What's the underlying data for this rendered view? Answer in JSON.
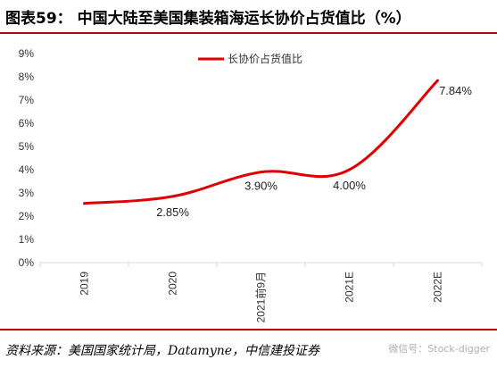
{
  "header": {
    "title": "图表59：  中国大陆至美国集装箱海运长协价占货值比（%）"
  },
  "footer": {
    "source": "资料来源：美国国家统计局，Datamyne，中信建投证券",
    "watermark": "微信号：Stock-digger"
  },
  "colors": {
    "series": "#e00000",
    "axis": "#d9d9d9",
    "accent": "#c00000"
  },
  "chart_data": {
    "type": "line",
    "categories": [
      "2019",
      "2020",
      "2021前9月",
      "2021E",
      "2022E"
    ],
    "series": [
      {
        "name": "长协价占货值比",
        "values": [
          2.55,
          2.85,
          3.9,
          4.0,
          7.84
        ],
        "data_labels": [
          "",
          "2.85%",
          "3.90%",
          "4.00%",
          "7.84%"
        ]
      }
    ],
    "yticks": [
      "0%",
      "1%",
      "2%",
      "3%",
      "4%",
      "5%",
      "6%",
      "7%",
      "8%",
      "9%"
    ],
    "ylim": [
      0,
      9
    ],
    "legend_position": "top-center",
    "grid": false
  }
}
